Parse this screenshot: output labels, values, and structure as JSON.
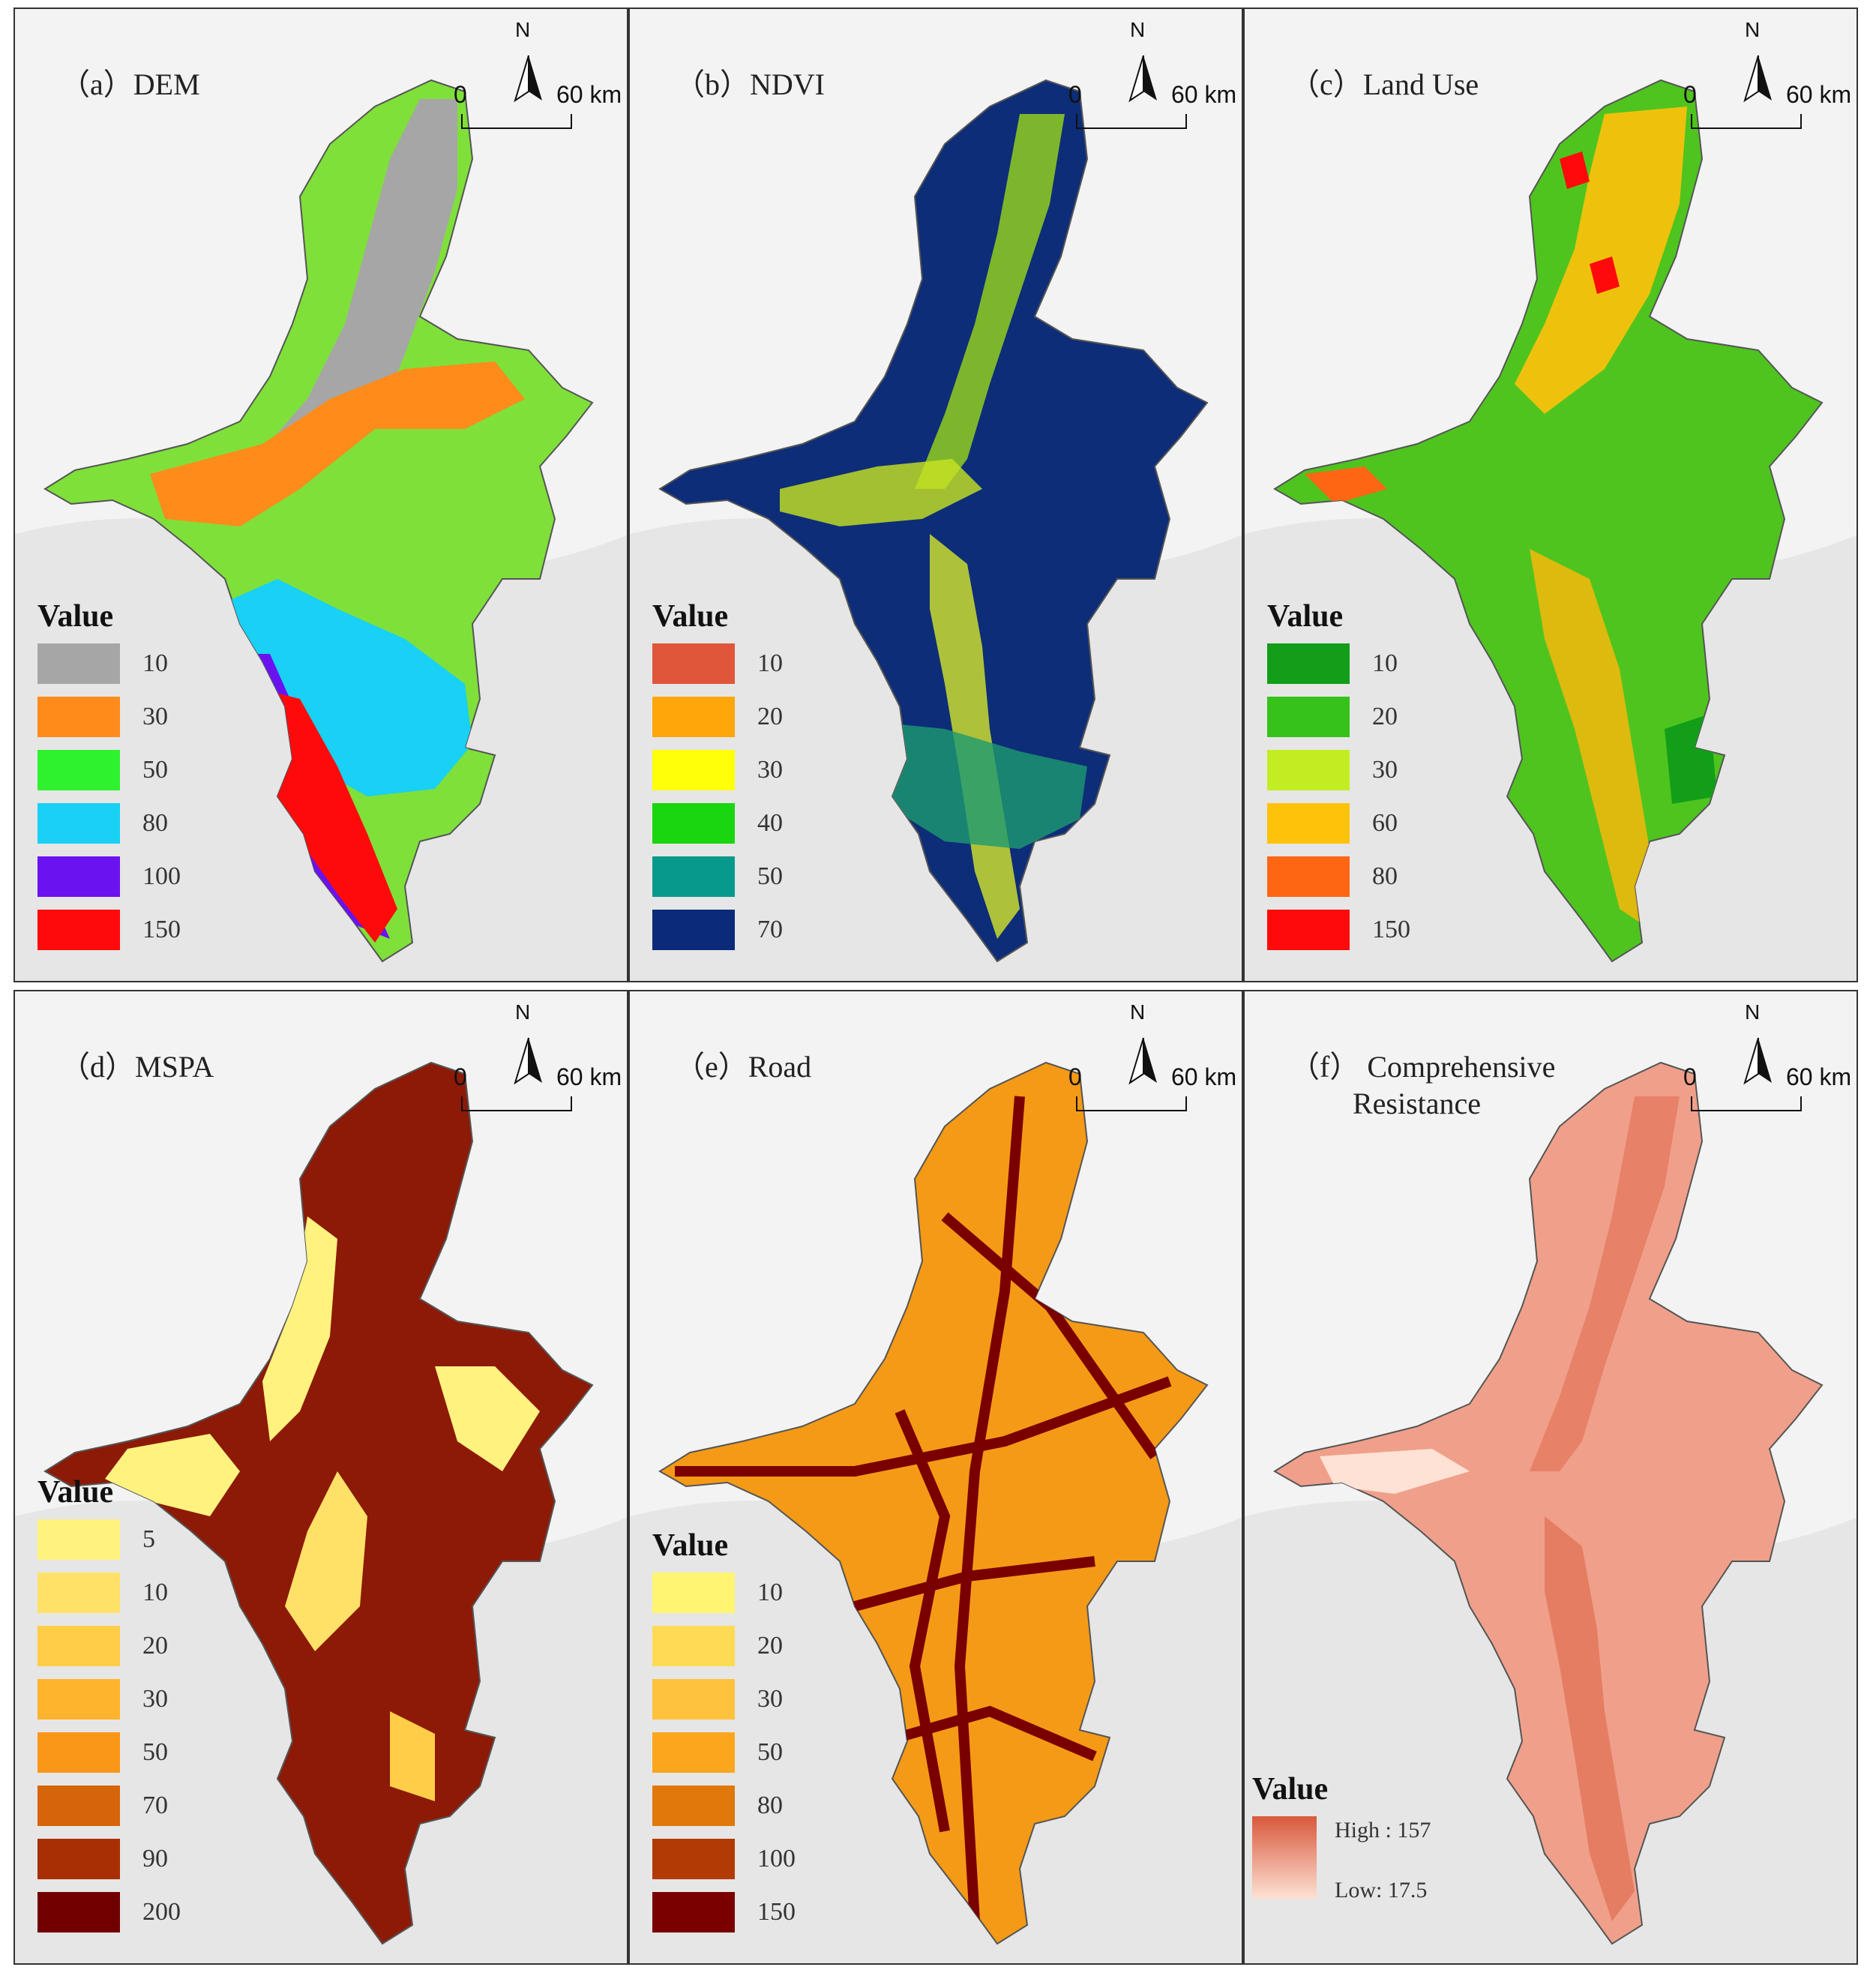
{
  "north_label": "N",
  "scale": {
    "zero": "0",
    "end": "60 km"
  },
  "legend_title": "Value",
  "panels": [
    {
      "id": "a",
      "title": "（a）DEM",
      "fill": "#7fe03a",
      "legend": [
        {
          "label": "10",
          "color": "#a6a6a6"
        },
        {
          "label": "30",
          "color": "#ff8c1a"
        },
        {
          "label": "50",
          "color": "#2ef22e"
        },
        {
          "label": "80",
          "color": "#19d0f5"
        },
        {
          "label": "100",
          "color": "#6a12f0"
        },
        {
          "label": "150",
          "color": "#ff0a0a"
        }
      ]
    },
    {
      "id": "b",
      "title": "（b）NDVI",
      "fill": "#0d2d78",
      "legend": [
        {
          "label": "10",
          "color": "#e0563a"
        },
        {
          "label": "20",
          "color": "#ffa60a"
        },
        {
          "label": "30",
          "color": "#ffff0a"
        },
        {
          "label": "40",
          "color": "#19d60f"
        },
        {
          "label": "50",
          "color": "#079a8c"
        },
        {
          "label": "70",
          "color": "#0b2a7a"
        }
      ]
    },
    {
      "id": "c",
      "title": "（c）Land Use",
      "fill": "#4fc41f",
      "legend": [
        {
          "label": "10",
          "color": "#129e19"
        },
        {
          "label": "20",
          "color": "#36c21b"
        },
        {
          "label": "30",
          "color": "#c2ed23"
        },
        {
          "label": "60",
          "color": "#ffc20a"
        },
        {
          "label": "80",
          "color": "#ff6614"
        },
        {
          "label": "150",
          "color": "#ff0a0a"
        }
      ]
    },
    {
      "id": "d",
      "title": "（d）MSPA",
      "fill": "#8c1a06",
      "legend": [
        {
          "label": "5",
          "color": "#fff27f"
        },
        {
          "label": "10",
          "color": "#ffe168"
        },
        {
          "label": "20",
          "color": "#ffcd48"
        },
        {
          "label": "30",
          "color": "#ffb42d"
        },
        {
          "label": "50",
          "color": "#fa9719"
        },
        {
          "label": "70",
          "color": "#d6640a"
        },
        {
          "label": "90",
          "color": "#a82e04"
        },
        {
          "label": "200",
          "color": "#730000"
        }
      ]
    },
    {
      "id": "e",
      "title": "（e）Road",
      "fill": "#f59a16",
      "legend": [
        {
          "label": "10",
          "color": "#fff570"
        },
        {
          "label": "20",
          "color": "#ffdb55"
        },
        {
          "label": "30",
          "color": "#ffc23d"
        },
        {
          "label": "50",
          "color": "#fca61e"
        },
        {
          "label": "80",
          "color": "#e0780c"
        },
        {
          "label": "100",
          "color": "#b23a04"
        },
        {
          "label": "150",
          "color": "#7a0000"
        }
      ]
    },
    {
      "id": "f",
      "title": "（f） Comprehensive",
      "title2": "Resistance",
      "fill": "#f0a08a",
      "gradient": {
        "high": "High : 157",
        "low": "Low: 17.5"
      }
    }
  ]
}
